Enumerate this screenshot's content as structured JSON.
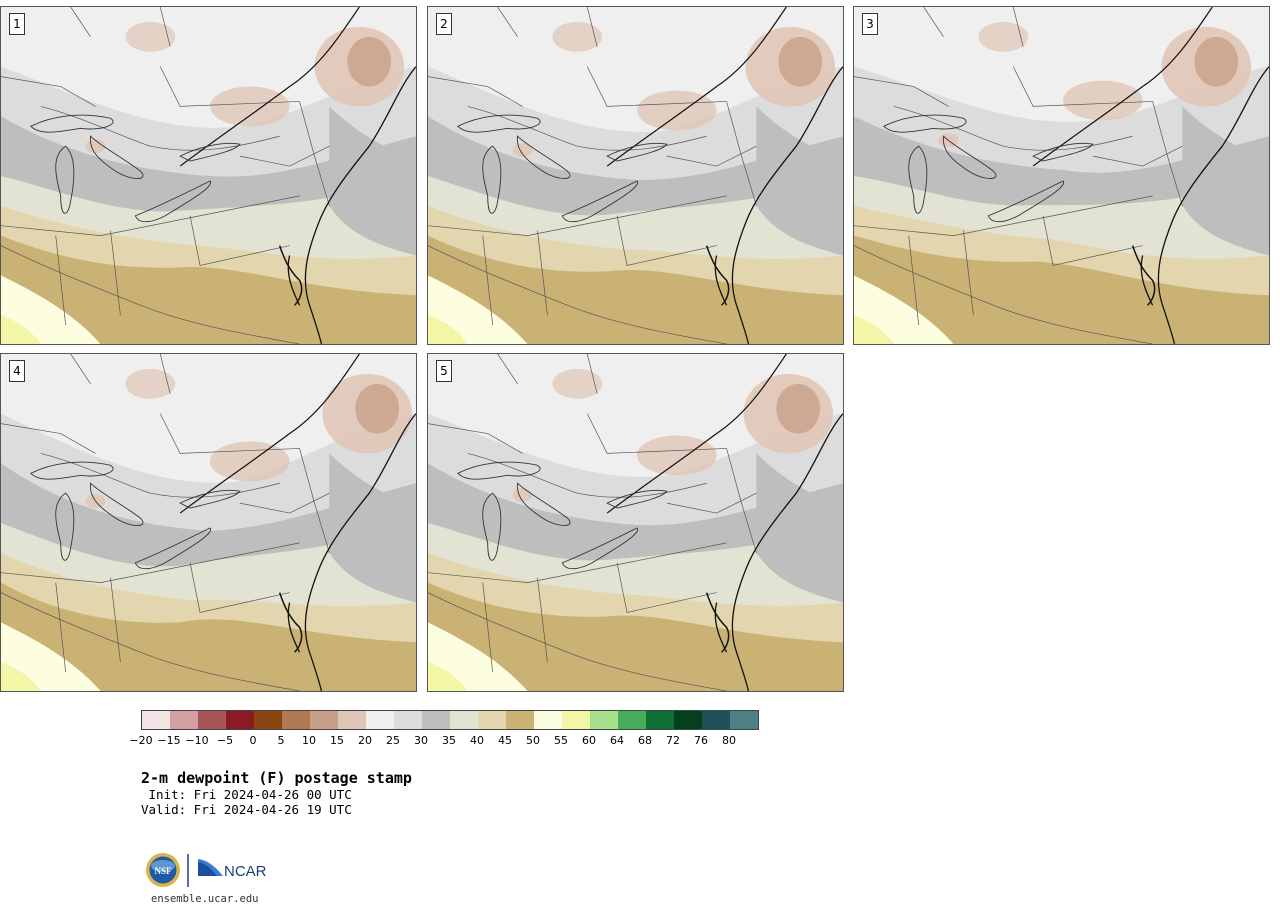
{
  "title": "2-m dewpoint (F) postage stamp",
  "init": " Init: Fri 2024-04-26 00 UTC",
  "valid": "Valid: Fri 2024-04-26 19 UTC",
  "footer_url": "ensemble.ucar.edu",
  "logos": {
    "nsf": "NSF",
    "ncar": "NCAR"
  },
  "panels": [
    {
      "label": "1"
    },
    {
      "label": "2"
    },
    {
      "label": "3"
    },
    {
      "label": "4"
    },
    {
      "label": "5"
    }
  ],
  "colorbar": {
    "ticks": [
      "−20",
      "−15",
      "−10",
      "−5",
      "0",
      "5",
      "10",
      "15",
      "20",
      "25",
      "30",
      "35",
      "40",
      "45",
      "50",
      "55",
      "60",
      "64",
      "68",
      "72",
      "76",
      "80"
    ],
    "colors": [
      "#f3e5e5",
      "#d4a0a3",
      "#a95558",
      "#8c1a22",
      "#8b4513",
      "#b07853",
      "#c8a089",
      "#e0c6b7",
      "#f0f0f0",
      "#dcdcdc",
      "#bebebe",
      "#e3e3d4",
      "#e3d5ad",
      "#c9b273",
      "#fdfde0",
      "#f3f5a7",
      "#a9de8b",
      "#47ad5a",
      "#0f6e32",
      "#044020",
      "#1e5058",
      "#4e7f83"
    ]
  },
  "map_colors": {
    "deep_tan": "#c9b273",
    "light_tan": "#e3d5ad",
    "pale_olive": "#e3e3d4",
    "mid_gray": "#bebebe",
    "light_gray": "#dcdcdc",
    "whitish": "#efefef",
    "pink_brown": "#e0c6b7",
    "brown": "#c8a089",
    "pale_yellow": "#fdfde0",
    "yellow_green": "#f3f5a7"
  }
}
